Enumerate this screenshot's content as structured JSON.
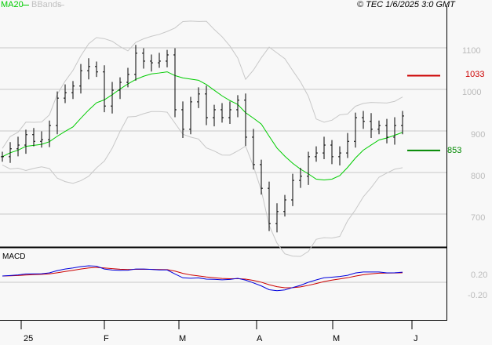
{
  "legend": {
    "ma": "MA20",
    "bbands": "BBands"
  },
  "copyright": "© TEC 1/6/2025 3:0 GMT",
  "colors": {
    "ma": "#00cc00",
    "bbands": "#c8c8c8",
    "macd": "#0000dd",
    "signal": "#cc0000",
    "resistance": "#cc0000",
    "support": "#008800"
  },
  "chart_data": {
    "type": "line",
    "title": "",
    "price_axis": {
      "ticks": [
        1100,
        1000,
        900,
        800,
        700
      ],
      "ylim": [
        610,
        1190
      ]
    },
    "x_ticks": [
      "25",
      "F",
      "M",
      "A",
      "M",
      "J"
    ],
    "close": [
      838,
      857,
      866,
      891,
      875,
      879,
      913,
      979,
      992,
      1008,
      1045,
      1055,
      1042,
      960,
      998,
      1017,
      1036,
      1087,
      1068,
      1064,
      1068,
      1083,
      951,
      904,
      970,
      989,
      932,
      951,
      932,
      951,
      974,
      885,
      819,
      762,
      677,
      706,
      734,
      781,
      791,
      838,
      847,
      866,
      838,
      847,
      875,
      932,
      923,
      904,
      913,
      885,
      913,
      936
    ],
    "levels": {
      "resistance": 1033,
      "support": 853
    },
    "macd_panel": {
      "label": "MACD",
      "ticks": [
        "0.20",
        "-0.20"
      ]
    }
  }
}
